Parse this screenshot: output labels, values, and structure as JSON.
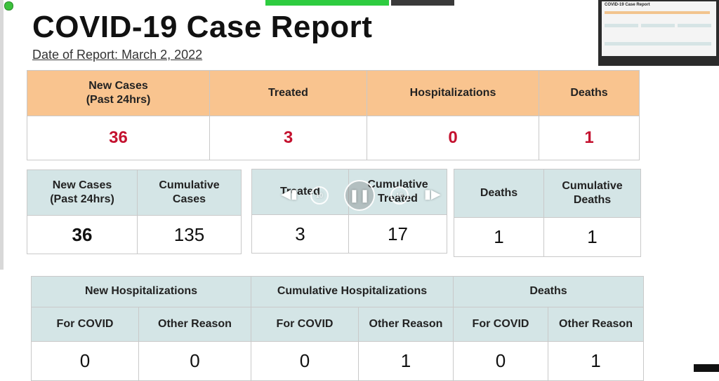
{
  "report": {
    "title": "COVID-19 Case Report",
    "date_label": "Date of Report: March 2, 2022"
  },
  "summary": {
    "headers": [
      "New Cases\n(Past 24hrs)",
      "Treated",
      "Hospitalizations",
      "Deaths"
    ],
    "values": [
      "36",
      "3",
      "0",
      "1"
    ]
  },
  "cases": {
    "headers": [
      "New Cases\n(Past 24hrs)",
      "Cumulative\nCases"
    ],
    "values": [
      "36",
      "135"
    ]
  },
  "treated": {
    "headers": [
      "Treated",
      "Cumulative\nTreated"
    ],
    "values": [
      "3",
      "17"
    ]
  },
  "deaths": {
    "headers": [
      "Deaths",
      "Cumulative\nDeaths"
    ],
    "values": [
      "1",
      "1"
    ]
  },
  "hospitalizations": {
    "groups": [
      "New Hospitalizations",
      "Cumulative Hospitalizations",
      "Deaths"
    ],
    "subheaders": [
      "For COVID",
      "Other Reason",
      "For COVID",
      "Other Reason",
      "For COVID",
      "Other Reason"
    ],
    "values": [
      "0",
      "0",
      "0",
      "1",
      "0",
      "1"
    ]
  },
  "colors": {
    "summary_header": "#f9c48f",
    "detail_header": "#d4e5e6",
    "summary_value": "#c4122f"
  },
  "video_controls": {
    "rewind_seconds": "10",
    "forward_seconds": "10",
    "icons": [
      "skip-back-icon",
      "rewind-icon",
      "pause-icon",
      "fast-forward-icon",
      "skip-forward-icon"
    ]
  }
}
